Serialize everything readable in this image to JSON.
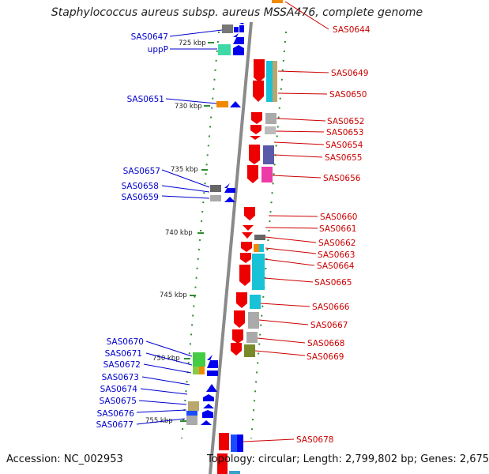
{
  "title": "Staphylococcus aureus subsp. aureus MSSA476, complete genome",
  "footer": {
    "accession": "Accession: NC_002953",
    "info": "Topology: circular; Length: 2,799,802 bp; Genes: 2,675"
  },
  "colors": {
    "forward_label": "#cc0000",
    "reverse_label": "#0000cc",
    "forward_gene": "#ee0000",
    "reverse_gene": "#0000ee",
    "backbone": "#8a8a8a",
    "tick": "#2e8b2e"
  },
  "scale": [
    "725 kbp",
    "730 kbp",
    "735 kbp",
    "740 kbp",
    "745 kbp",
    "750 kbp",
    "755 kbp"
  ],
  "left_labels": [
    "SAS0647",
    "uppP",
    "SAS0651",
    "SAS0657",
    "SAS0658",
    "SAS0659",
    "SAS0670",
    "SAS0671",
    "SAS0672",
    "SAS0673",
    "SAS0674",
    "SAS0675",
    "SAS0676",
    "SAS0677"
  ],
  "right_labels": [
    "SAS0644",
    "SAS0649",
    "SAS0650",
    "SAS0652",
    "SAS0653",
    "SAS0654",
    "SAS0655",
    "SAS0656",
    "SAS0660",
    "SAS0661",
    "SAS0662",
    "SAS0663",
    "SAS0664",
    "SAS0665",
    "SAS0666",
    "SAS0667",
    "SAS0668",
    "SAS0669",
    "SAS0678"
  ]
}
